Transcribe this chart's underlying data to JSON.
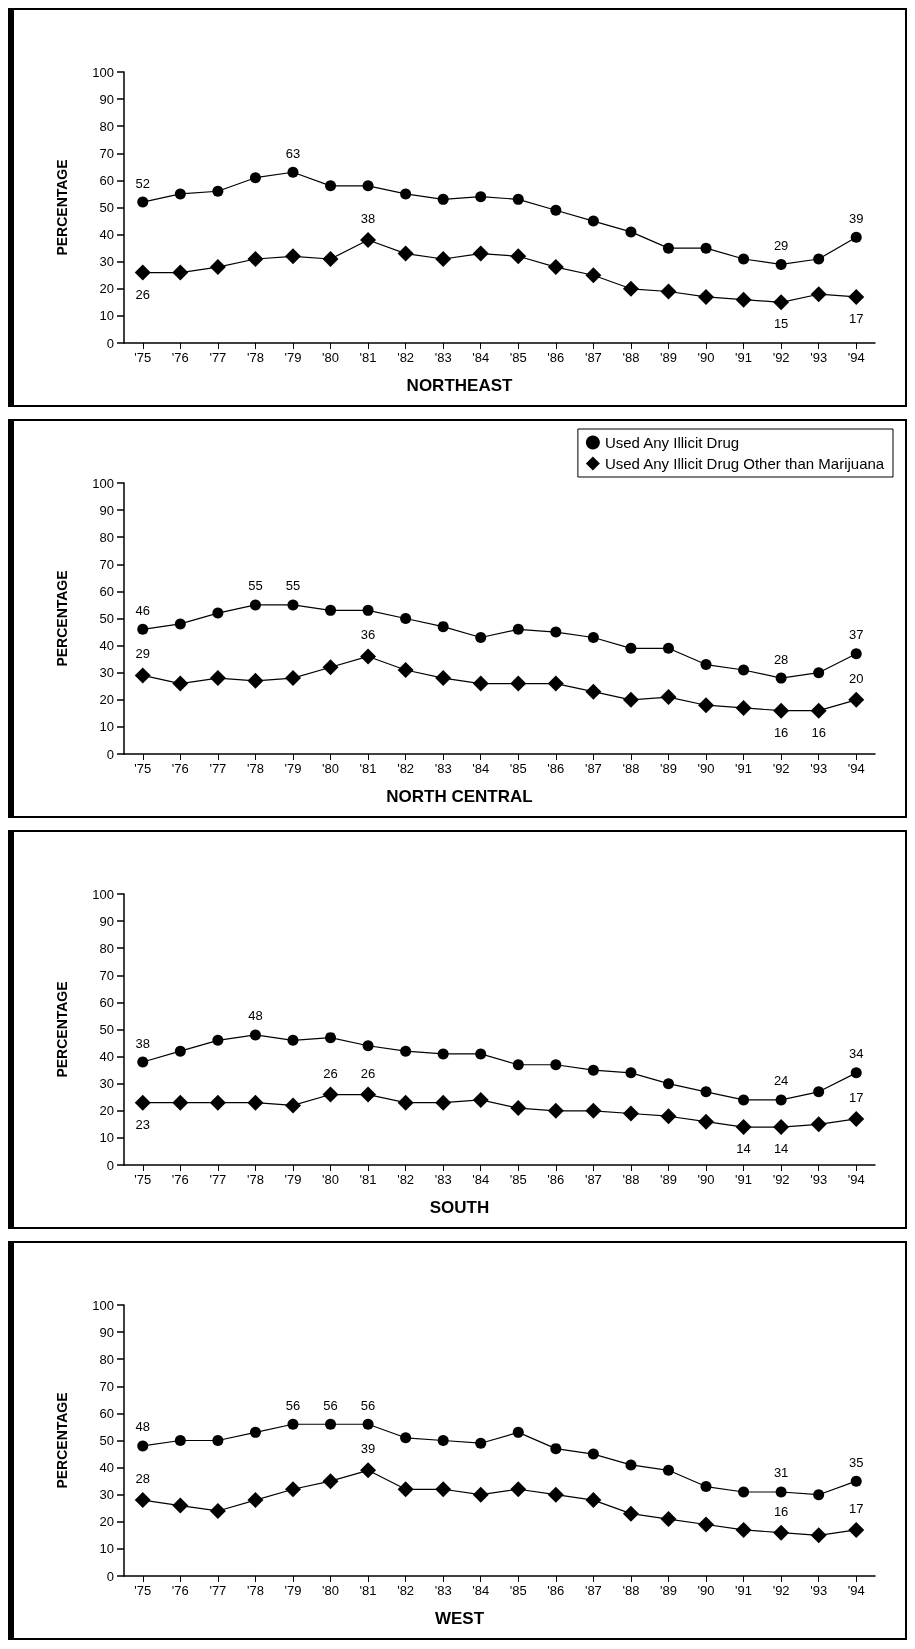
{
  "chart_data": [
    {
      "type": "line",
      "title": "NORTHEAST",
      "ylabel": "PERCENTAGE",
      "categories": [
        "'75",
        "'76",
        "'77",
        "'78",
        "'79",
        "'80",
        "'81",
        "'82",
        "'83",
        "'84",
        "'85",
        "'86",
        "'87",
        "'88",
        "'89",
        "'90",
        "'91",
        "'92",
        "'93",
        "'94"
      ],
      "ylim": [
        0,
        100
      ],
      "yticks": [
        0,
        10,
        20,
        30,
        40,
        50,
        60,
        70,
        80,
        90,
        100
      ],
      "series": [
        {
          "color": "#000000",
          "marker": "circle",
          "values": [
            52,
            55,
            56,
            61,
            63,
            58,
            58,
            55,
            53,
            54,
            53,
            49,
            45,
            41,
            35,
            35,
            31,
            29,
            31,
            39
          ],
          "value_labels": [
            "52",
            null,
            null,
            null,
            "63",
            null,
            null,
            null,
            null,
            null,
            null,
            null,
            null,
            null,
            null,
            null,
            null,
            "29",
            null,
            "39"
          ]
        },
        {
          "color": "#000000",
          "marker": "diamond",
          "values": [
            26,
            26,
            28,
            31,
            32,
            31,
            38,
            33,
            31,
            33,
            32,
            28,
            25,
            20,
            19,
            17,
            16,
            15,
            18,
            17
          ],
          "value_labels": [
            "26",
            null,
            null,
            null,
            null,
            null,
            "38",
            null,
            null,
            null,
            null,
            null,
            null,
            null,
            null,
            null,
            null,
            "15",
            null,
            "17"
          ]
        }
      ]
    },
    {
      "type": "line",
      "title": "NORTH CENTRAL",
      "ylabel": "PERCENTAGE",
      "legend": "top right",
      "categories": [
        "'75",
        "'76",
        "'77",
        "'78",
        "'79",
        "'80",
        "'81",
        "'82",
        "'83",
        "'84",
        "'85",
        "'86",
        "'87",
        "'88",
        "'89",
        "'90",
        "'91",
        "'92",
        "'93",
        "'94"
      ],
      "ylim": [
        0,
        100
      ],
      "yticks": [
        0,
        10,
        20,
        30,
        40,
        50,
        60,
        70,
        80,
        90,
        100
      ],
      "series": [
        {
          "name": "Used Any Illicit Drug",
          "color": "#000000",
          "marker": "circle",
          "values": [
            46,
            48,
            52,
            55,
            55,
            53,
            53,
            50,
            47,
            43,
            46,
            45,
            43,
            39,
            39,
            33,
            31,
            28,
            30,
            37
          ],
          "value_labels": [
            "46",
            null,
            null,
            "55",
            "55",
            null,
            null,
            null,
            null,
            null,
            null,
            null,
            null,
            null,
            null,
            null,
            null,
            "28",
            null,
            "37"
          ]
        },
        {
          "name": "Used Any Illicit Drug Other than Marijuana",
          "color": "#000000",
          "marker": "diamond",
          "values": [
            29,
            26,
            28,
            27,
            28,
            32,
            36,
            31,
            28,
            26,
            26,
            26,
            23,
            20,
            21,
            18,
            17,
            16,
            16,
            20
          ],
          "value_labels": [
            "29",
            null,
            null,
            null,
            null,
            null,
            "36",
            null,
            null,
            null,
            null,
            null,
            null,
            null,
            null,
            null,
            null,
            "16",
            "16",
            "20"
          ]
        }
      ]
    },
    {
      "type": "line",
      "title": "SOUTH",
      "ylabel": "PERCENTAGE",
      "categories": [
        "'75",
        "'76",
        "'77",
        "'78",
        "'79",
        "'80",
        "'81",
        "'82",
        "'83",
        "'84",
        "'85",
        "'86",
        "'87",
        "'88",
        "'89",
        "'90",
        "'91",
        "'92",
        "'93",
        "'94"
      ],
      "ylim": [
        0,
        100
      ],
      "yticks": [
        0,
        10,
        20,
        30,
        40,
        50,
        60,
        70,
        80,
        90,
        100
      ],
      "series": [
        {
          "color": "#000000",
          "marker": "circle",
          "values": [
            38,
            42,
            46,
            48,
            46,
            47,
            44,
            42,
            41,
            41,
            37,
            37,
            35,
            34,
            30,
            27,
            24,
            24,
            27,
            34
          ],
          "value_labels": [
            "38",
            null,
            null,
            "48",
            null,
            null,
            null,
            null,
            null,
            null,
            null,
            null,
            null,
            null,
            null,
            null,
            null,
            "24",
            null,
            "34"
          ]
        },
        {
          "color": "#000000",
          "marker": "diamond",
          "values": [
            23,
            23,
            23,
            23,
            22,
            26,
            26,
            23,
            23,
            24,
            21,
            20,
            20,
            19,
            18,
            16,
            14,
            14,
            15,
            17
          ],
          "value_labels": [
            "23",
            null,
            null,
            null,
            null,
            "26",
            "26",
            null,
            null,
            null,
            null,
            null,
            null,
            null,
            null,
            null,
            "14",
            "14",
            null,
            "17"
          ]
        }
      ]
    },
    {
      "type": "line",
      "title": "WEST",
      "ylabel": "PERCENTAGE",
      "categories": [
        "'75",
        "'76",
        "'77",
        "'78",
        "'79",
        "'80",
        "'81",
        "'82",
        "'83",
        "'84",
        "'85",
        "'86",
        "'87",
        "'88",
        "'89",
        "'90",
        "'91",
        "'92",
        "'93",
        "'94"
      ],
      "ylim": [
        0,
        100
      ],
      "yticks": [
        0,
        10,
        20,
        30,
        40,
        50,
        60,
        70,
        80,
        90,
        100
      ],
      "series": [
        {
          "color": "#000000",
          "marker": "circle",
          "values": [
            48,
            50,
            50,
            53,
            56,
            56,
            56,
            51,
            50,
            49,
            53,
            47,
            45,
            41,
            39,
            33,
            31,
            31,
            30,
            35
          ],
          "value_labels": [
            "48",
            null,
            null,
            null,
            "56",
            "56",
            "56",
            null,
            null,
            null,
            null,
            null,
            null,
            null,
            null,
            null,
            null,
            "31",
            null,
            "35"
          ]
        },
        {
          "color": "#000000",
          "marker": "diamond",
          "values": [
            28,
            26,
            24,
            28,
            32,
            35,
            39,
            32,
            32,
            30,
            32,
            30,
            28,
            23,
            21,
            19,
            17,
            16,
            15,
            17
          ],
          "value_labels": [
            "28",
            null,
            null,
            null,
            null,
            null,
            "39",
            null,
            null,
            null,
            null,
            null,
            null,
            null,
            null,
            null,
            null,
            "16",
            null,
            "17"
          ]
        }
      ]
    }
  ]
}
